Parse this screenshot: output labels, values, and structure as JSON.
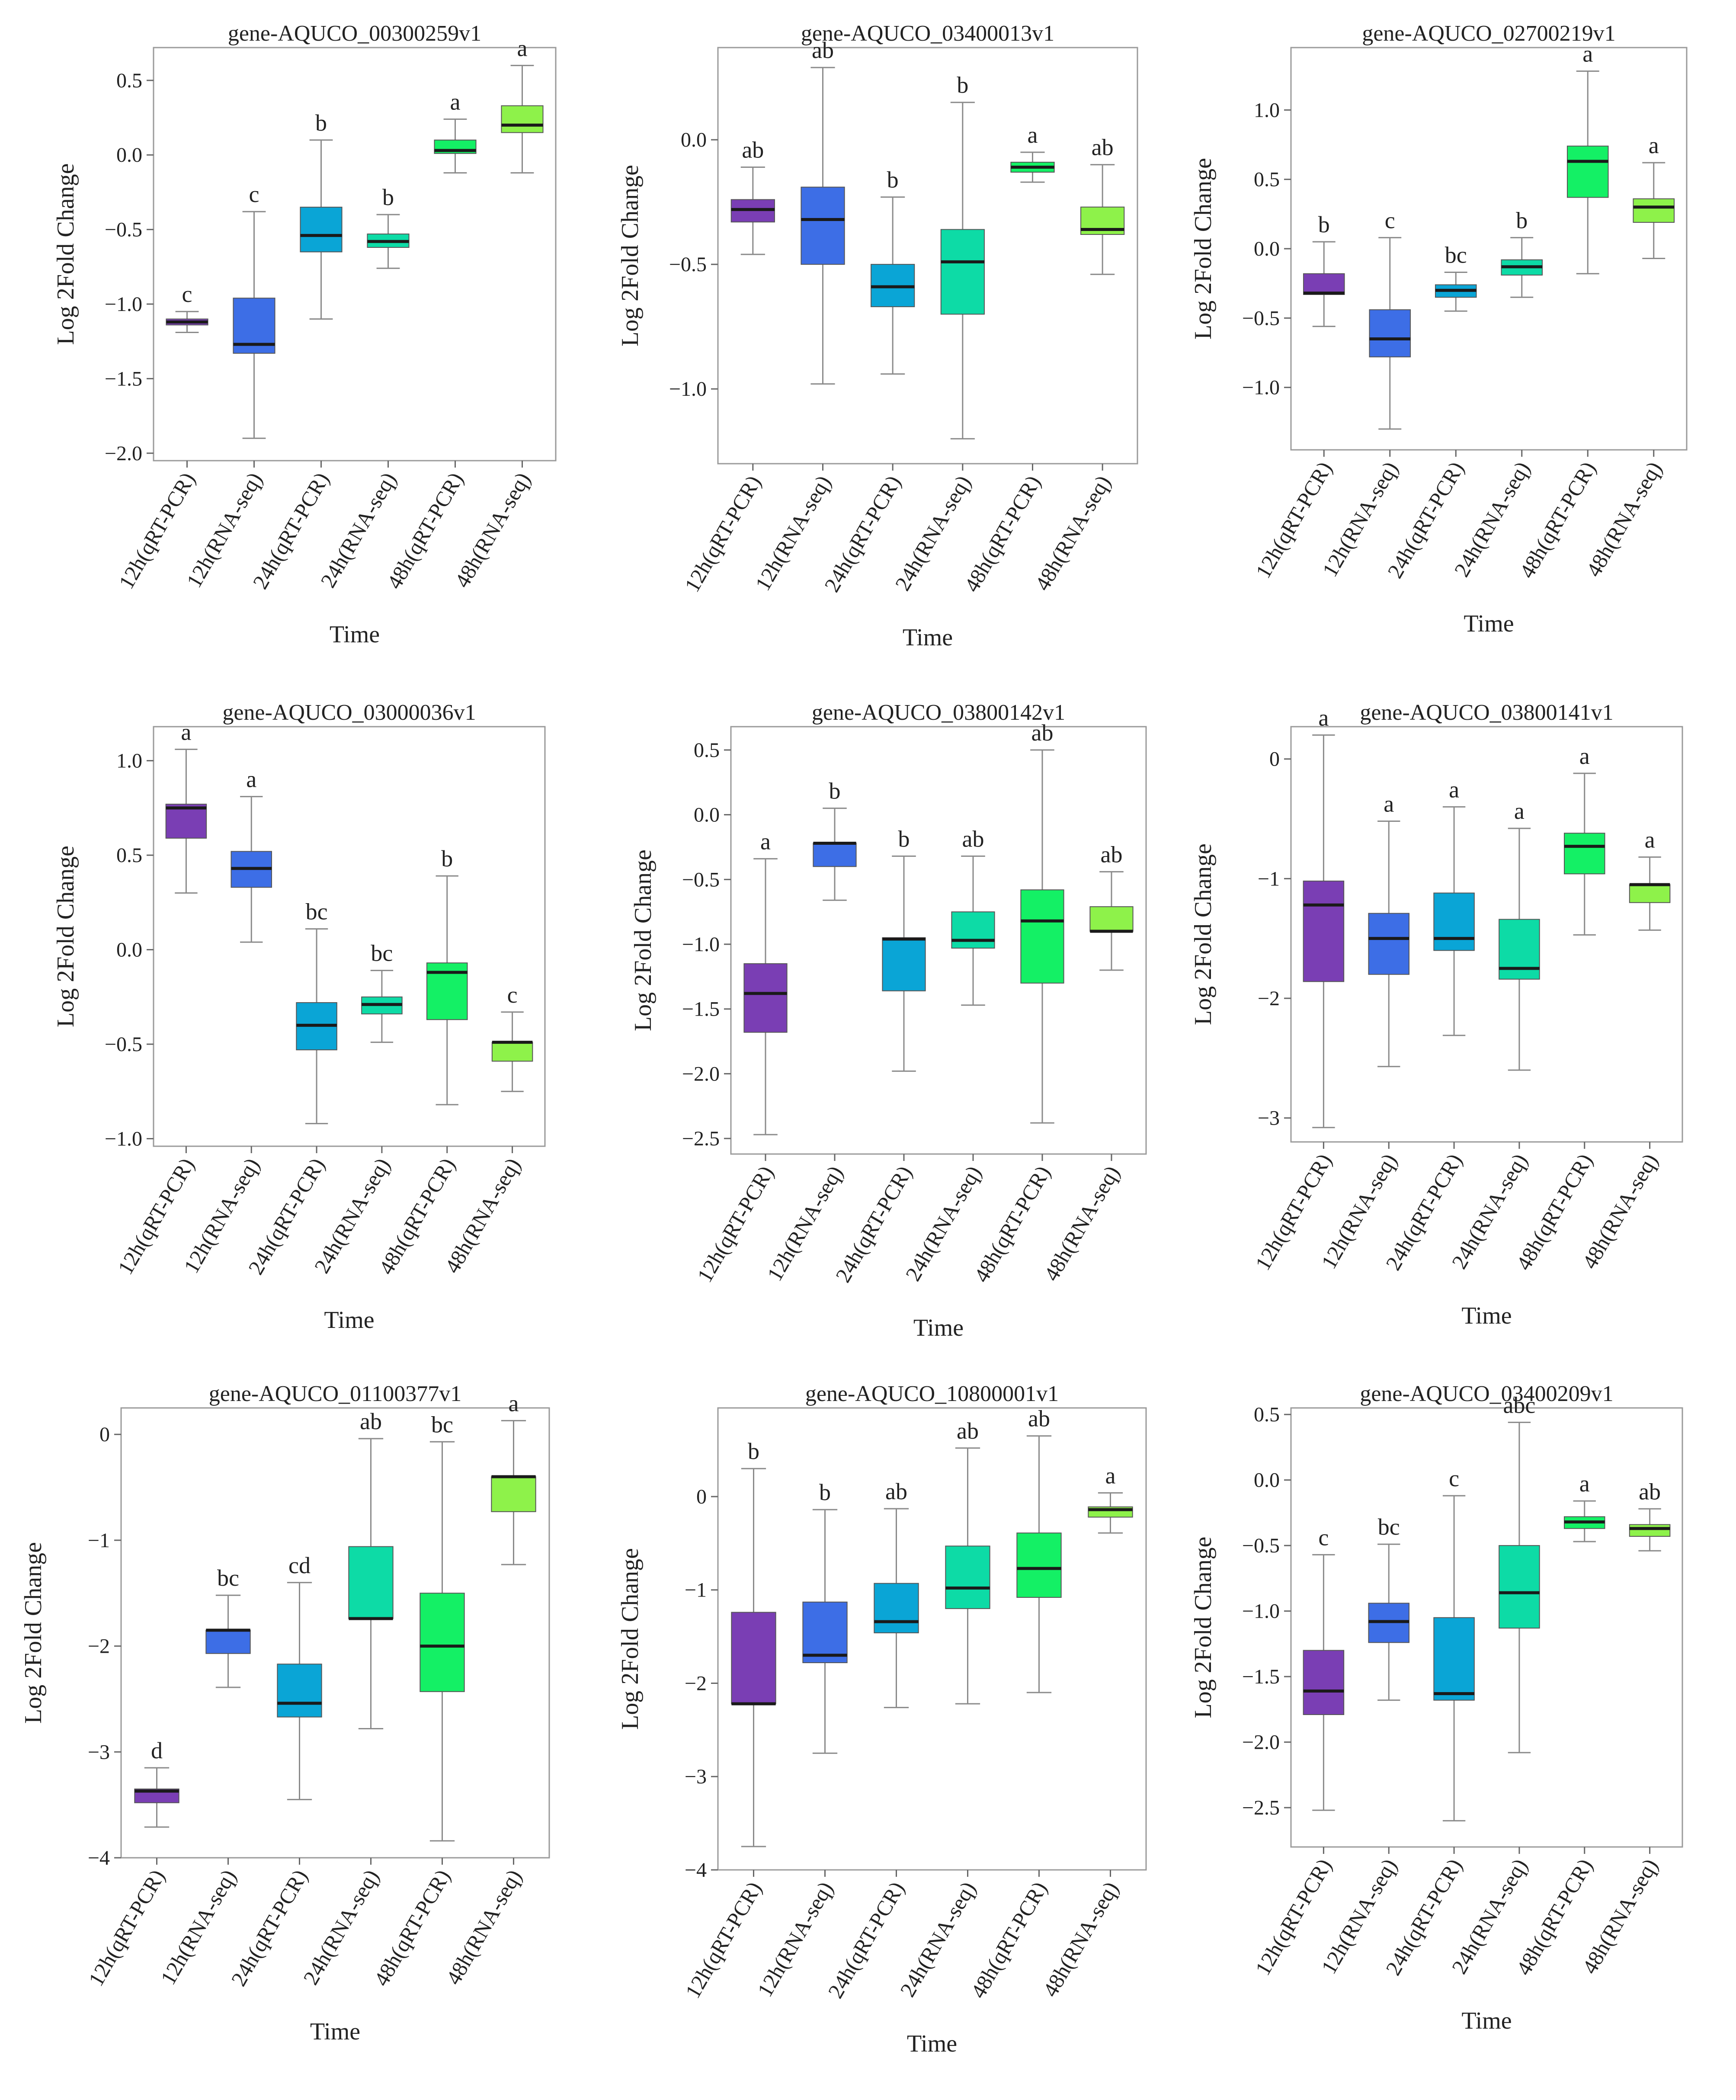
{
  "shared": {
    "categories": [
      "12h(qRT-PCR)",
      "12h(RNA-seq)",
      "24h(qRT-PCR)",
      "24h(RNA-seq)",
      "48h(qRT-PCR)",
      "48h(RNA-seq)"
    ],
    "colors": [
      "#7a3eb4",
      "#3d6ee6",
      "#0aa5d6",
      "#0ddba6",
      "#14f065",
      "#8ef24a"
    ]
  },
  "chart_data": [
    {
      "type": "box",
      "title": "gene-AQUCO_00300259v1",
      "xlabel": "Time",
      "ylabel": "Log 2Fold Change",
      "ylim": [
        -2.05,
        0.72
      ],
      "yticks": [
        0.5,
        0.0,
        -0.5,
        -1.0,
        -1.5,
        -2.0
      ],
      "ytick_labels": [
        "0.5",
        "0.0",
        "−0.5",
        "−1.0",
        "−1.5",
        "−2.0"
      ],
      "boxes": [
        {
          "category": "12h(qRT-PCR)",
          "min": -1.19,
          "q1": -1.14,
          "median": -1.12,
          "q3": -1.1,
          "max": -1.05,
          "label": "c"
        },
        {
          "category": "12h(RNA-seq)",
          "min": -1.9,
          "q1": -1.33,
          "median": -1.27,
          "q3": -0.96,
          "max": -0.38,
          "label": "c"
        },
        {
          "category": "24h(qRT-PCR)",
          "min": -1.1,
          "q1": -0.65,
          "median": -0.54,
          "q3": -0.35,
          "max": 0.1,
          "label": "b"
        },
        {
          "category": "24h(RNA-seq)",
          "min": -0.76,
          "q1": -0.62,
          "median": -0.58,
          "q3": -0.53,
          "max": -0.4,
          "label": "b"
        },
        {
          "category": "48h(qRT-PCR)",
          "min": -0.12,
          "q1": 0.01,
          "median": 0.03,
          "q3": 0.1,
          "max": 0.24,
          "label": "a"
        },
        {
          "category": "48h(RNA-seq)",
          "min": -0.12,
          "q1": 0.15,
          "median": 0.2,
          "q3": 0.33,
          "max": 0.6,
          "label": "a"
        }
      ]
    },
    {
      "type": "box",
      "title": "gene-AQUCO_03400013v1",
      "xlabel": "Time",
      "ylabel": "Log 2Fold Change",
      "ylim": [
        -1.3,
        0.37
      ],
      "yticks": [
        0.0,
        -0.5,
        -1.0
      ],
      "ytick_labels": [
        "0.0",
        "−0.5",
        "−1.0"
      ],
      "boxes": [
        {
          "category": "12h(qRT-PCR)",
          "min": -0.46,
          "q1": -0.33,
          "median": -0.28,
          "q3": -0.24,
          "max": -0.11,
          "label": "ab"
        },
        {
          "category": "12h(RNA-seq)",
          "min": -0.98,
          "q1": -0.5,
          "median": -0.32,
          "q3": -0.19,
          "max": 0.29,
          "label": "ab"
        },
        {
          "category": "24h(qRT-PCR)",
          "min": -0.94,
          "q1": -0.67,
          "median": -0.59,
          "q3": -0.5,
          "max": -0.23,
          "label": "b"
        },
        {
          "category": "24h(RNA-seq)",
          "min": -1.2,
          "q1": -0.7,
          "median": -0.49,
          "q3": -0.36,
          "max": 0.15,
          "label": "b"
        },
        {
          "category": "48h(qRT-PCR)",
          "min": -0.17,
          "q1": -0.13,
          "median": -0.11,
          "q3": -0.09,
          "max": -0.05,
          "label": "a"
        },
        {
          "category": "48h(RNA-seq)",
          "min": -0.54,
          "q1": -0.38,
          "median": -0.36,
          "q3": -0.27,
          "max": -0.1,
          "label": "ab"
        }
      ]
    },
    {
      "type": "box",
      "title": "gene-AQUCO_02700219v1",
      "xlabel": "Time",
      "ylabel": "Log 2Fold Change",
      "ylim": [
        -1.45,
        1.45
      ],
      "yticks": [
        1.0,
        0.5,
        0.0,
        -0.5,
        -1.0
      ],
      "ytick_labels": [
        "1.0",
        "0.5",
        "0.0",
        "−0.5",
        "−1.0"
      ],
      "boxes": [
        {
          "category": "12h(qRT-PCR)",
          "min": -0.56,
          "q1": -0.33,
          "median": -0.32,
          "q3": -0.18,
          "max": 0.05,
          "label": "b"
        },
        {
          "category": "12h(RNA-seq)",
          "min": -1.3,
          "q1": -0.78,
          "median": -0.65,
          "q3": -0.44,
          "max": 0.08,
          "label": "c"
        },
        {
          "category": "24h(qRT-PCR)",
          "min": -0.45,
          "q1": -0.35,
          "median": -0.3,
          "q3": -0.26,
          "max": -0.17,
          "label": "bc"
        },
        {
          "category": "24h(RNA-seq)",
          "min": -0.35,
          "q1": -0.19,
          "median": -0.13,
          "q3": -0.08,
          "max": 0.08,
          "label": "b"
        },
        {
          "category": "48h(qRT-PCR)",
          "min": -0.18,
          "q1": 0.37,
          "median": 0.63,
          "q3": 0.74,
          "max": 1.28,
          "label": "a"
        },
        {
          "category": "48h(RNA-seq)",
          "min": -0.07,
          "q1": 0.19,
          "median": 0.3,
          "q3": 0.36,
          "max": 0.62,
          "label": "a"
        }
      ]
    },
    {
      "type": "box",
      "title": "gene-AQUCO_03000036v1",
      "xlabel": "Time",
      "ylabel": "Log 2Fold Change",
      "ylim": [
        -1.04,
        1.18
      ],
      "yticks": [
        1.0,
        0.5,
        0.0,
        -0.5,
        -1.0
      ],
      "ytick_labels": [
        "1.0",
        "0.5",
        "0.0",
        "−0.5",
        "−1.0"
      ],
      "boxes": [
        {
          "category": "12h(qRT-PCR)",
          "min": 0.3,
          "q1": 0.59,
          "median": 0.75,
          "q3": 0.77,
          "max": 1.06,
          "label": "a"
        },
        {
          "category": "12h(RNA-seq)",
          "min": 0.04,
          "q1": 0.33,
          "median": 0.43,
          "q3": 0.52,
          "max": 0.81,
          "label": "a"
        },
        {
          "category": "24h(qRT-PCR)",
          "min": -0.92,
          "q1": -0.53,
          "median": -0.4,
          "q3": -0.28,
          "max": 0.11,
          "label": "bc"
        },
        {
          "category": "24h(RNA-seq)",
          "min": -0.49,
          "q1": -0.34,
          "median": -0.29,
          "q3": -0.25,
          "max": -0.11,
          "label": "bc"
        },
        {
          "category": "48h(qRT-PCR)",
          "min": -0.82,
          "q1": -0.37,
          "median": -0.12,
          "q3": -0.07,
          "max": 0.39,
          "label": "b"
        },
        {
          "category": "48h(RNA-seq)",
          "min": -0.75,
          "q1": -0.59,
          "median": -0.49,
          "q3": -0.49,
          "max": -0.33,
          "label": "c"
        }
      ]
    },
    {
      "type": "box",
      "title": "gene-AQUCO_03800142v1",
      "xlabel": "Time",
      "ylabel": "Log 2Fold Change",
      "ylim": [
        -2.62,
        0.68
      ],
      "yticks": [
        0.5,
        0.0,
        -0.5,
        -1.0,
        -1.5,
        -2.0,
        -2.5
      ],
      "ytick_labels": [
        "0.5",
        "0.0",
        "−0.5",
        "−1.0",
        "−1.5",
        "−2.0",
        "−2.5"
      ],
      "boxes": [
        {
          "category": "12h(qRT-PCR)",
          "min": -2.47,
          "q1": -1.68,
          "median": -1.38,
          "q3": -1.15,
          "max": -0.34,
          "label": "a"
        },
        {
          "category": "12h(RNA-seq)",
          "min": -0.66,
          "q1": -0.4,
          "median": -0.22,
          "q3": -0.22,
          "max": 0.05,
          "label": "b"
        },
        {
          "category": "24h(qRT-PCR)",
          "min": -1.98,
          "q1": -1.36,
          "median": -0.96,
          "q3": -0.95,
          "max": -0.32,
          "label": "b"
        },
        {
          "category": "24h(RNA-seq)",
          "min": -1.47,
          "q1": -1.03,
          "median": -0.97,
          "q3": -0.75,
          "max": -0.32,
          "label": "ab"
        },
        {
          "category": "48h(qRT-PCR)",
          "min": -2.38,
          "q1": -1.3,
          "median": -0.82,
          "q3": -0.58,
          "max": 0.5,
          "label": "ab"
        },
        {
          "category": "48h(RNA-seq)",
          "min": -1.2,
          "q1": -0.9,
          "median": -0.9,
          "q3": -0.71,
          "max": -0.44,
          "label": "ab"
        }
      ]
    },
    {
      "type": "box",
      "title": "gene-AQUCO_03800141v1",
      "xlabel": "Time",
      "ylabel": "Log 2Fold Change",
      "ylim": [
        -3.2,
        0.27
      ],
      "yticks": [
        0,
        -1,
        -2,
        -3
      ],
      "ytick_labels": [
        "0",
        "−1",
        "−2",
        "−3"
      ],
      "boxes": [
        {
          "category": "12h(qRT-PCR)",
          "min": -3.08,
          "q1": -1.86,
          "median": -1.22,
          "q3": -1.02,
          "max": 0.2,
          "label": "a"
        },
        {
          "category": "12h(RNA-seq)",
          "min": -2.57,
          "q1": -1.8,
          "median": -1.5,
          "q3": -1.29,
          "max": -0.52,
          "label": "a"
        },
        {
          "category": "24h(qRT-PCR)",
          "min": -2.31,
          "q1": -1.6,
          "median": -1.5,
          "q3": -1.12,
          "max": -0.4,
          "label": "a"
        },
        {
          "category": "24h(RNA-seq)",
          "min": -2.6,
          "q1": -1.84,
          "median": -1.75,
          "q3": -1.34,
          "max": -0.58,
          "label": "a"
        },
        {
          "category": "48h(qRT-PCR)",
          "min": -1.47,
          "q1": -0.96,
          "median": -0.73,
          "q3": -0.62,
          "max": -0.12,
          "label": "a"
        },
        {
          "category": "48h(RNA-seq)",
          "min": -1.43,
          "q1": -1.2,
          "median": -1.05,
          "q3": -1.05,
          "max": -0.82,
          "label": "a"
        }
      ]
    },
    {
      "type": "box",
      "title": "gene-AQUCO_01100377v1",
      "xlabel": "Time",
      "ylabel": "Log 2Fold Change",
      "ylim": [
        -4.0,
        0.25
      ],
      "yticks": [
        0,
        -1,
        -2,
        -3,
        -4
      ],
      "ytick_labels": [
        "0",
        "−1",
        "−2",
        "−3",
        "−4"
      ],
      "boxes": [
        {
          "category": "12h(qRT-PCR)",
          "min": -3.71,
          "q1": -3.48,
          "median": -3.37,
          "q3": -3.35,
          "max": -3.15,
          "label": "d"
        },
        {
          "category": "12h(RNA-seq)",
          "min": -2.39,
          "q1": -2.07,
          "median": -1.85,
          "q3": -1.85,
          "max": -1.52,
          "label": "bc"
        },
        {
          "category": "24h(qRT-PCR)",
          "min": -3.45,
          "q1": -2.67,
          "median": -2.54,
          "q3": -2.17,
          "max": -1.4,
          "label": "cd"
        },
        {
          "category": "24h(RNA-seq)",
          "min": -2.78,
          "q1": -1.74,
          "median": -1.74,
          "q3": -1.06,
          "max": -0.04,
          "label": "ab"
        },
        {
          "category": "48h(qRT-PCR)",
          "min": -3.84,
          "q1": -2.43,
          "median": -2.0,
          "q3": -1.5,
          "max": -0.07,
          "label": "bc"
        },
        {
          "category": "48h(RNA-seq)",
          "min": -1.23,
          "q1": -0.73,
          "median": -0.4,
          "q3": -0.4,
          "max": 0.13,
          "label": "a"
        }
      ]
    },
    {
      "type": "box",
      "title": "gene-AQUCO_10800001v1",
      "xlabel": "Time",
      "ylabel": "Log 2Fold Change",
      "ylim": [
        -4.0,
        0.95
      ],
      "yticks": [
        0,
        -1,
        -2,
        -3,
        -4
      ],
      "ytick_labels": [
        "0",
        "−1",
        "−2",
        "−3",
        "−4"
      ],
      "boxes": [
        {
          "category": "12h(qRT-PCR)",
          "min": -3.75,
          "q1": -2.22,
          "median": -2.22,
          "q3": -1.24,
          "max": 0.3,
          "label": "b"
        },
        {
          "category": "12h(RNA-seq)",
          "min": -2.75,
          "q1": -1.78,
          "median": -1.7,
          "q3": -1.13,
          "max": -0.14,
          "label": "b"
        },
        {
          "category": "24h(qRT-PCR)",
          "min": -2.26,
          "q1": -1.46,
          "median": -1.34,
          "q3": -0.93,
          "max": -0.13,
          "label": "ab"
        },
        {
          "category": "24h(RNA-seq)",
          "min": -2.22,
          "q1": -1.2,
          "median": -0.98,
          "q3": -0.53,
          "max": 0.52,
          "label": "ab"
        },
        {
          "category": "48h(qRT-PCR)",
          "min": -2.1,
          "q1": -1.08,
          "median": -0.77,
          "q3": -0.39,
          "max": 0.65,
          "label": "ab"
        },
        {
          "category": "48h(RNA-seq)",
          "min": -0.39,
          "q1": -0.22,
          "median": -0.14,
          "q3": -0.11,
          "max": 0.04,
          "label": "a"
        }
      ]
    },
    {
      "type": "box",
      "title": "gene-AQUCO_03400209v1",
      "xlabel": "Time",
      "ylabel": "Log 2Fold Change",
      "ylim": [
        -2.8,
        0.55
      ],
      "yticks": [
        0.5,
        0.0,
        -0.5,
        -1.0,
        -1.5,
        -2.0,
        -2.5
      ],
      "ytick_labels": [
        "0.5",
        "0.0",
        "−0.5",
        "−1.0",
        "−1.5",
        "−2.0",
        "−2.5"
      ],
      "boxes": [
        {
          "category": "12h(qRT-PCR)",
          "min": -2.52,
          "q1": -1.79,
          "median": -1.61,
          "q3": -1.3,
          "max": -0.57,
          "label": "c"
        },
        {
          "category": "12h(RNA-seq)",
          "min": -1.68,
          "q1": -1.24,
          "median": -1.08,
          "q3": -0.94,
          "max": -0.49,
          "label": "bc"
        },
        {
          "category": "24h(qRT-PCR)",
          "min": -2.6,
          "q1": -1.68,
          "median": -1.63,
          "q3": -1.05,
          "max": -0.12,
          "label": "c"
        },
        {
          "category": "24h(RNA-seq)",
          "min": -2.08,
          "q1": -1.13,
          "median": -0.86,
          "q3": -0.5,
          "max": 0.44,
          "label": "abc"
        },
        {
          "category": "48h(qRT-PCR)",
          "min": -0.47,
          "q1": -0.37,
          "median": -0.32,
          "q3": -0.28,
          "max": -0.16,
          "label": "a"
        },
        {
          "category": "48h(RNA-seq)",
          "min": -0.54,
          "q1": -0.43,
          "median": -0.37,
          "q3": -0.34,
          "max": -0.22,
          "label": "ab"
        }
      ]
    }
  ]
}
